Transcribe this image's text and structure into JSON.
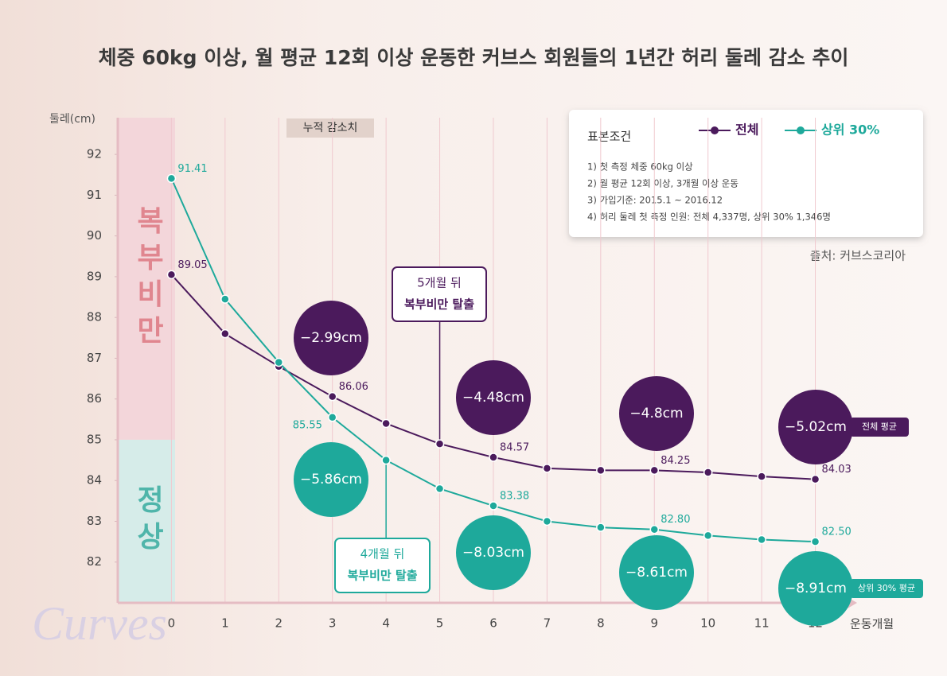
{
  "chart_data": {
    "type": "line",
    "title": "체중 60kg 이상, 월 평균 12회 이상 운동한 커브스 회원들의 1년간 허리 둘레 감소 추이",
    "y_label": "둘레(cm)",
    "x_label": "운동개월",
    "x": [
      0,
      1,
      2,
      3,
      4,
      5,
      6,
      7,
      8,
      9,
      10,
      11,
      12
    ],
    "xlim": [
      -1,
      12.6
    ],
    "xticks": [
      0,
      1,
      2,
      3,
      4,
      5,
      6,
      7,
      8,
      9,
      10,
      11,
      12
    ],
    "ylim": [
      81,
      92.9
    ],
    "yticks": [
      82,
      83,
      84,
      85,
      86,
      87,
      88,
      89,
      90,
      91,
      92
    ],
    "grid": true,
    "series": [
      {
        "name": "전체",
        "color": "#4b1a5c",
        "values": [
          89.05,
          87.6,
          86.8,
          86.06,
          85.4,
          84.9,
          84.57,
          84.3,
          84.25,
          84.25,
          84.2,
          84.1,
          84.03
        ],
        "value_labels": [
          "89.05",
          null,
          null,
          "86.06",
          null,
          null,
          "84.57",
          null,
          null,
          "84.25",
          null,
          null,
          "84.03"
        ],
        "reduction_labels": [
          "−2.99cm",
          "−4.48cm",
          "−4.8cm",
          "−5.02cm"
        ],
        "average_tag": "전체 평균"
      },
      {
        "name": "상위 30%",
        "color": "#1ea99b",
        "values": [
          91.41,
          88.45,
          86.9,
          85.55,
          84.5,
          83.8,
          83.38,
          83.0,
          82.85,
          82.8,
          82.65,
          82.55,
          82.5
        ],
        "value_labels": [
          "91.41",
          null,
          null,
          "85.55",
          null,
          null,
          "83.38",
          null,
          null,
          "82.80",
          null,
          null,
          "82.50"
        ],
        "reduction_labels": [
          "−5.86cm",
          "−8.03cm",
          "−8.61cm",
          "−8.91cm"
        ],
        "average_tag": "상위 30% 평균"
      }
    ],
    "obesity_threshold": 85,
    "zones": [
      "복부비만",
      "정상"
    ],
    "cumulative_label": "누적 감소치",
    "notes": [
      [
        "5개월 뒤",
        "복부비만 탈출"
      ],
      [
        "4개월 뒤",
        "복부비만 탈출"
      ]
    ],
    "sample": {
      "title": "표본조건",
      "lines": [
        "1) 첫 측정 체중 60kg 이상",
        "2) 월 평균 12회 이상, 3개월 이상 운동",
        "3) 가입기준: 2015.1 ~ 2016.12",
        "4) 허리 둘레 첫 측정 인원: 전체 4,337명, 상위 30% 1,346명"
      ]
    },
    "source": "출처: 커브스코리아",
    "logo": "Curves"
  }
}
